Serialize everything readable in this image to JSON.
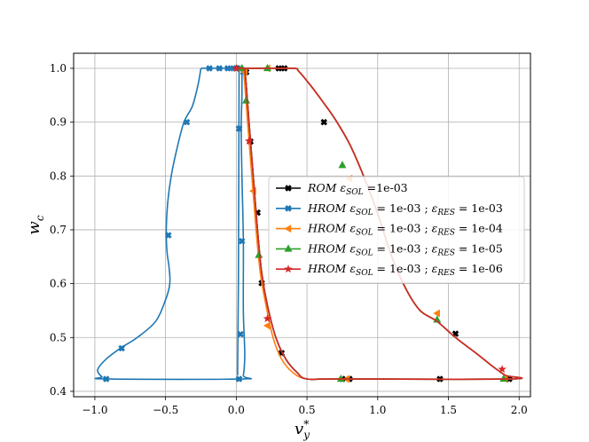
{
  "chart_data": {
    "type": "line",
    "xlabel": "v*y",
    "ylabel": "wc",
    "xlim": [
      -1.15,
      2.08
    ],
    "ylim": [
      0.39,
      1.028
    ],
    "grid": true,
    "x_ticks": [
      -1.0,
      -0.5,
      0.0,
      0.5,
      1.0,
      1.5,
      2.0
    ],
    "x_tick_labels": [
      "−1.0",
      "−0.5",
      "0.0",
      "0.5",
      "1.0",
      "1.5",
      "2.0"
    ],
    "y_ticks": [
      0.4,
      0.5,
      0.6,
      0.7,
      0.8,
      0.9,
      1.0
    ],
    "y_tick_labels": [
      "0.4",
      "0.5",
      "0.6",
      "0.7",
      "0.8",
      "0.9",
      "1.0"
    ],
    "legend_position": "center-right",
    "series": [
      {
        "name": "ROM εSOL =1e-03",
        "legend_parts": [
          [
            "ROM ε",
            "i"
          ],
          [
            "SOL",
            "sub"
          ],
          [
            " =1e-03",
            "r"
          ]
        ],
        "color": "#000000",
        "marker": "X",
        "lines": [
          [
            [
              0.0,
              1.0
            ],
            [
              0.1,
              1.0
            ],
            [
              0.4,
              1.0
            ],
            [
              0.44,
              0.995
            ],
            [
              0.52,
              0.97
            ],
            [
              0.62,
              0.935
            ],
            [
              0.7,
              0.905
            ],
            [
              0.8,
              0.86
            ],
            [
              0.9,
              0.8
            ],
            [
              1.0,
              0.73
            ],
            [
              1.1,
              0.65
            ],
            [
              1.2,
              0.59
            ],
            [
              1.3,
              0.55
            ],
            [
              1.42,
              0.53
            ],
            [
              1.55,
              0.5
            ],
            [
              1.7,
              0.47
            ],
            [
              1.82,
              0.445
            ],
            [
              1.9,
              0.43
            ],
            [
              1.94,
              0.423
            ],
            [
              0.73,
              0.423
            ],
            [
              0.5,
              0.423
            ],
            [
              0.43,
              0.435
            ],
            [
              0.35,
              0.46
            ],
            [
              0.28,
              0.5
            ],
            [
              0.22,
              0.56
            ],
            [
              0.18,
              0.62
            ],
            [
              0.15,
              0.7
            ],
            [
              0.12,
              0.8
            ],
            [
              0.09,
              0.9
            ],
            [
              0.07,
              0.97
            ],
            [
              0.06,
              1.0
            ]
          ]
        ],
        "markers": [
          [
            0.0,
            1.0
          ],
          [
            0.3,
            1.0
          ],
          [
            0.34,
            1.0
          ],
          [
            0.62,
            0.9
          ],
          [
            1.55,
            0.507
          ],
          [
            1.93,
            0.423
          ],
          [
            1.44,
            0.423
          ],
          [
            0.8,
            0.423
          ],
          [
            0.75,
            0.423
          ],
          [
            0.32,
            0.471
          ],
          [
            0.18,
            0.601
          ],
          [
            0.15,
            0.732
          ],
          [
            0.1,
            0.864
          ],
          [
            0.07,
            0.993
          ]
        ]
      },
      {
        "name": "HROM εSOL = 1e-03 ; εRES = 1e-03",
        "legend_parts": [
          [
            "HROM ε",
            "i"
          ],
          [
            "SOL",
            "sub"
          ],
          [
            " = 1e-03 ; ",
            "r"
          ],
          [
            "ε",
            "i"
          ],
          [
            "RES",
            "sub"
          ],
          [
            " = 1e-03",
            "r"
          ]
        ],
        "color": "#1f77b4",
        "marker": "X",
        "lines": [
          [
            [
              -0.25,
              1.0
            ],
            [
              -0.27,
              0.97
            ],
            [
              -0.31,
              0.93
            ],
            [
              -0.37,
              0.9
            ],
            [
              -0.42,
              0.85
            ],
            [
              -0.46,
              0.8
            ],
            [
              -0.485,
              0.75
            ],
            [
              -0.495,
              0.7
            ],
            [
              -0.49,
              0.66
            ],
            [
              -0.475,
              0.63
            ],
            [
              -0.47,
              0.6
            ],
            [
              -0.5,
              0.57
            ],
            [
              -0.57,
              0.53
            ],
            [
              -0.7,
              0.5
            ],
            [
              -0.82,
              0.48
            ],
            [
              -0.92,
              0.46
            ],
            [
              -0.98,
              0.44
            ],
            [
              -0.95,
              0.427
            ],
            [
              -0.92,
              0.423
            ],
            [
              0.03,
              0.423
            ],
            [
              0.05,
              0.43
            ],
            [
              0.06,
              0.47
            ],
            [
              0.05,
              0.55
            ],
            [
              0.05,
              0.68
            ],
            [
              0.04,
              0.8
            ],
            [
              0.035,
              0.89
            ],
            [
              0.04,
              0.95
            ],
            [
              0.04,
              1.0
            ]
          ],
          [
            [
              -0.25,
              1.0
            ],
            [
              0.05,
              1.0
            ]
          ],
          [
            [
              0.02,
              1.0
            ],
            [
              0.015,
              0.6
            ],
            [
              0.01,
              0.45
            ],
            [
              0.01,
              0.43
            ]
          ]
        ],
        "markers": [
          [
            -0.19,
            1.0
          ],
          [
            -0.12,
            1.0
          ],
          [
            -0.06,
            1.0
          ],
          [
            -0.02,
            1.0
          ],
          [
            0.03,
            1.0
          ],
          [
            0.05,
            0.993
          ],
          [
            0.02,
            0.888
          ],
          [
            0.04,
            0.679
          ],
          [
            0.03,
            0.506
          ],
          [
            0.02,
            0.423
          ],
          [
            -0.92,
            0.423
          ],
          [
            -0.81,
            0.48
          ],
          [
            -0.48,
            0.69
          ],
          [
            -0.35,
            0.9
          ]
        ]
      },
      {
        "name": "HROM εSOL = 1e-03 ; εRES = 1e-04",
        "legend_parts": [
          [
            "HROM ε",
            "i"
          ],
          [
            "SOL",
            "sub"
          ],
          [
            " = 1e-03 ; ",
            "r"
          ],
          [
            "ε",
            "i"
          ],
          [
            "RES",
            "sub"
          ],
          [
            " = 1e-04",
            "r"
          ]
        ],
        "color": "#ff7f0e",
        "marker": "<",
        "lines": [
          [
            [
              0.0,
              1.0
            ],
            [
              0.1,
              1.0
            ],
            [
              0.4,
              1.0
            ],
            [
              0.44,
              0.995
            ],
            [
              0.52,
              0.97
            ],
            [
              0.62,
              0.935
            ],
            [
              0.7,
              0.905
            ],
            [
              0.8,
              0.86
            ],
            [
              0.9,
              0.8
            ],
            [
              1.0,
              0.73
            ],
            [
              1.1,
              0.65
            ],
            [
              1.2,
              0.59
            ],
            [
              1.3,
              0.55
            ],
            [
              1.42,
              0.53
            ],
            [
              1.55,
              0.5
            ],
            [
              1.7,
              0.47
            ],
            [
              1.82,
              0.445
            ],
            [
              1.9,
              0.43
            ],
            [
              1.94,
              0.423
            ],
            [
              0.73,
              0.423
            ],
            [
              0.5,
              0.423
            ],
            [
              0.4,
              0.435
            ],
            [
              0.32,
              0.46
            ],
            [
              0.26,
              0.5
            ],
            [
              0.21,
              0.56
            ],
            [
              0.17,
              0.62
            ],
            [
              0.14,
              0.7
            ],
            [
              0.11,
              0.8
            ],
            [
              0.08,
              0.9
            ],
            [
              0.06,
              0.97
            ],
            [
              0.05,
              1.0
            ]
          ]
        ],
        "markers": [
          [
            0.22,
            1.0
          ],
          [
            0.8,
            0.795
          ],
          [
            1.42,
            0.545
          ],
          [
            1.9,
            0.423
          ],
          [
            0.78,
            0.423
          ],
          [
            0.22,
            0.522
          ],
          [
            0.12,
            0.772
          ],
          [
            0.06,
            0.993
          ]
        ]
      },
      {
        "name": "HROM εSOL = 1e-03 ; εRES = 1e-05",
        "legend_parts": [
          [
            "HROM ε",
            "i"
          ],
          [
            "SOL",
            "sub"
          ],
          [
            " = 1e-03 ; ",
            "r"
          ],
          [
            "ε",
            "i"
          ],
          [
            "RES",
            "sub"
          ],
          [
            " = 1e-05",
            "r"
          ]
        ],
        "color": "#2ca02c",
        "marker": "^",
        "lines": [
          [
            [
              0.0,
              1.0
            ],
            [
              0.1,
              1.0
            ],
            [
              0.4,
              1.0
            ],
            [
              0.44,
              0.995
            ],
            [
              0.52,
              0.97
            ],
            [
              0.62,
              0.935
            ],
            [
              0.7,
              0.905
            ],
            [
              0.8,
              0.86
            ],
            [
              0.9,
              0.8
            ],
            [
              1.0,
              0.73
            ],
            [
              1.1,
              0.65
            ],
            [
              1.2,
              0.59
            ],
            [
              1.3,
              0.55
            ],
            [
              1.42,
              0.53
            ],
            [
              1.55,
              0.5
            ],
            [
              1.7,
              0.47
            ],
            [
              1.82,
              0.445
            ],
            [
              1.9,
              0.43
            ],
            [
              1.94,
              0.423
            ],
            [
              0.73,
              0.423
            ],
            [
              0.5,
              0.423
            ],
            [
              0.43,
              0.435
            ],
            [
              0.35,
              0.46
            ],
            [
              0.28,
              0.5
            ],
            [
              0.22,
              0.56
            ],
            [
              0.18,
              0.62
            ],
            [
              0.15,
              0.7
            ],
            [
              0.12,
              0.8
            ],
            [
              0.09,
              0.9
            ],
            [
              0.07,
              0.97
            ],
            [
              0.06,
              1.0
            ]
          ]
        ],
        "markers": [
          [
            0.04,
            1.0
          ],
          [
            0.22,
            1.0
          ],
          [
            0.75,
            0.82
          ],
          [
            1.42,
            0.533
          ],
          [
            1.89,
            0.423
          ],
          [
            0.74,
            0.423
          ],
          [
            0.16,
            0.653
          ],
          [
            0.07,
            0.94
          ]
        ]
      },
      {
        "name": "HROM εSOL = 1e-03 ; εRES = 1e-06",
        "legend_parts": [
          [
            "HROM ε",
            "i"
          ],
          [
            "SOL",
            "sub"
          ],
          [
            " = 1e-03 ; ",
            "r"
          ],
          [
            "ε",
            "i"
          ],
          [
            "RES",
            "sub"
          ],
          [
            " = 1e-06",
            "r"
          ]
        ],
        "color": "#d62728",
        "marker": "*",
        "lines": [
          [
            [
              0.0,
              1.0
            ],
            [
              0.1,
              1.0
            ],
            [
              0.4,
              1.0
            ],
            [
              0.44,
              0.995
            ],
            [
              0.52,
              0.97
            ],
            [
              0.62,
              0.935
            ],
            [
              0.7,
              0.905
            ],
            [
              0.8,
              0.86
            ],
            [
              0.9,
              0.8
            ],
            [
              1.0,
              0.73
            ],
            [
              1.1,
              0.65
            ],
            [
              1.2,
              0.59
            ],
            [
              1.3,
              0.55
            ],
            [
              1.42,
              0.53
            ],
            [
              1.55,
              0.5
            ],
            [
              1.7,
              0.47
            ],
            [
              1.82,
              0.445
            ],
            [
              1.9,
              0.43
            ],
            [
              1.94,
              0.423
            ],
            [
              0.73,
              0.423
            ],
            [
              0.5,
              0.423
            ],
            [
              0.43,
              0.435
            ],
            [
              0.35,
              0.46
            ],
            [
              0.28,
              0.5
            ],
            [
              0.22,
              0.56
            ],
            [
              0.18,
              0.62
            ],
            [
              0.15,
              0.7
            ],
            [
              0.12,
              0.8
            ],
            [
              0.09,
              0.9
            ],
            [
              0.07,
              0.97
            ],
            [
              0.06,
              1.0
            ]
          ]
        ],
        "markers": [
          [
            0.0,
            1.0
          ],
          [
            1.88,
            0.441
          ],
          [
            0.22,
            0.535
          ],
          [
            0.09,
            0.865
          ]
        ]
      }
    ]
  }
}
